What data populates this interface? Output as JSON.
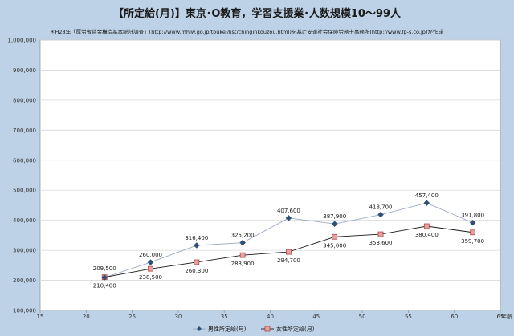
{
  "chart_data": {
    "type": "line",
    "title": "【所定給(月)】東京･O教育，学習支援業･人数規模10～99人",
    "subtitle": "＊H28年「厚労省賃金構造基本統計調査」(http://www.mhlw.go.jp/toukei/list/chinginkouzou.html)を基に安達社会保険労務士事務所(http://www.fp-s.co.jp)が作成",
    "xlabel": "年齢",
    "ylabel": "",
    "xlim": [
      15,
      65
    ],
    "ylim": [
      100000,
      1000000
    ],
    "x_ticks": [
      "15",
      "20",
      "25",
      "30",
      "35",
      "40",
      "45",
      "50",
      "55",
      "60",
      "65"
    ],
    "y_ticks": [
      "100,000",
      "200,000",
      "300,000",
      "400,000",
      "500,000",
      "600,000",
      "700,000",
      "800,000",
      "900,000",
      "1,000,000"
    ],
    "x": [
      22,
      27,
      32,
      37,
      42,
      47,
      52,
      57,
      62
    ],
    "grid": true,
    "legend_position": "bottom",
    "series": [
      {
        "name": "男性所定給(月)",
        "color": "#2e4f7a",
        "marker": "diamond",
        "values": [
          209500,
          260000,
          316400,
          325200,
          407600,
          387900,
          418700,
          457400,
          391800
        ],
        "labels": [
          "209,500",
          "260,000",
          "316,400",
          "325,200",
          "407,600",
          "387,900",
          "418,700",
          "457,400",
          "391,800"
        ]
      },
      {
        "name": "女性所定給(月)",
        "color": "#d06a6a",
        "marker": "square",
        "values": [
          210400,
          238500,
          260300,
          283900,
          294700,
          345000,
          353600,
          380400,
          359700
        ],
        "labels": [
          "210,400",
          "238,500",
          "260,300",
          "283,900",
          "294,700",
          "345,000",
          "353,600",
          "380,400",
          "359,700"
        ]
      }
    ]
  }
}
